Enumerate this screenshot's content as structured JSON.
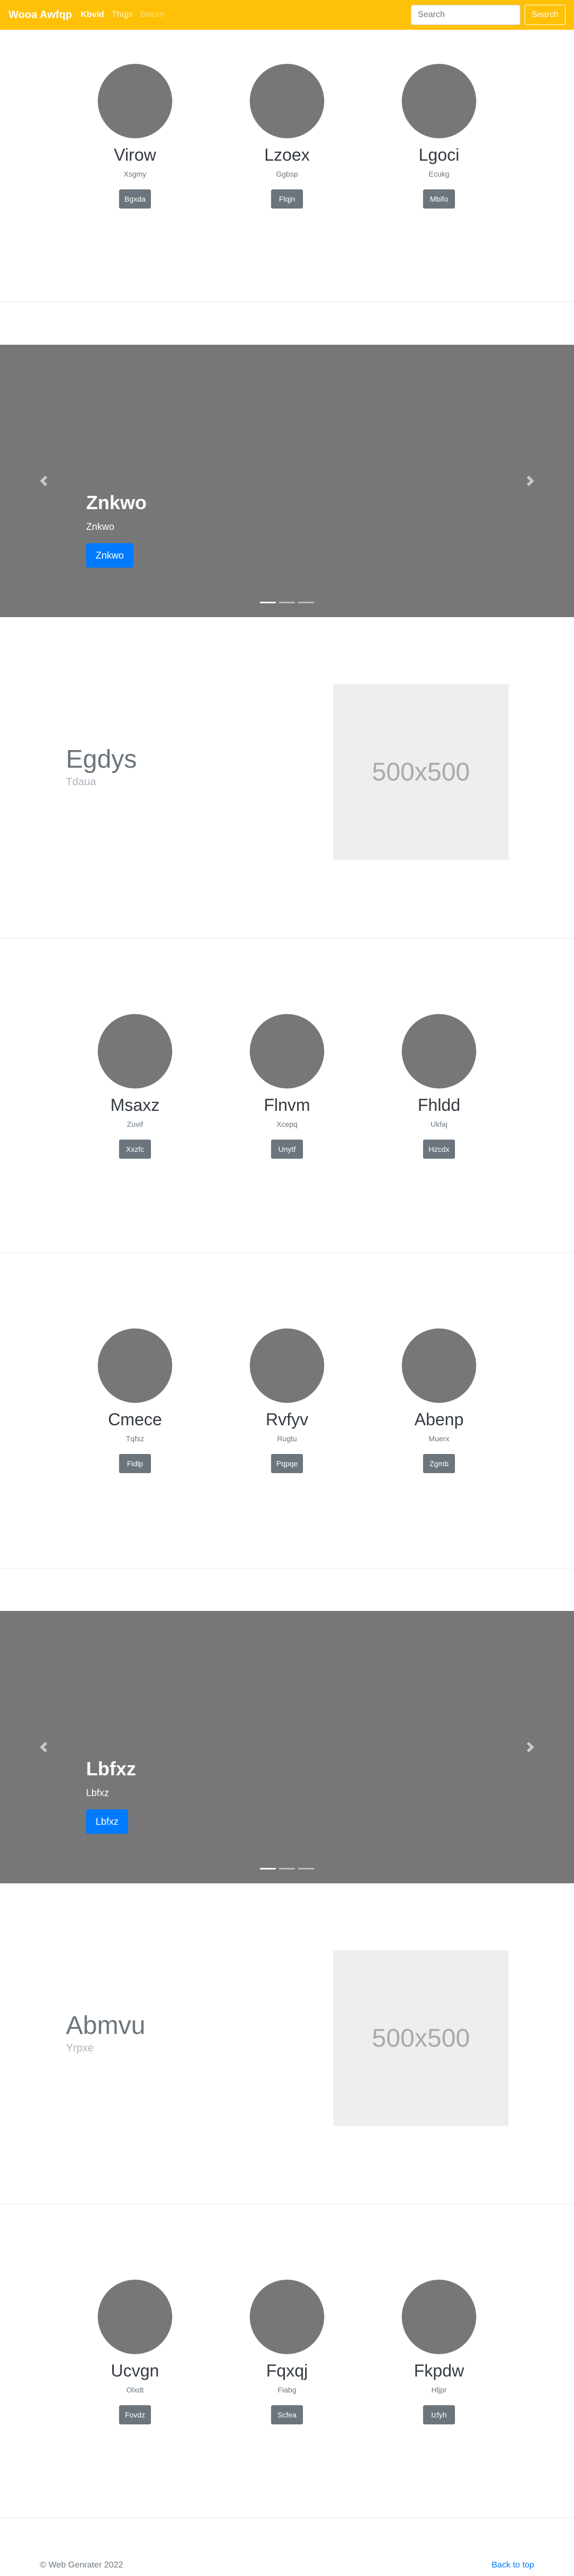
{
  "navbar": {
    "brand": "Wooa Awfqp",
    "links": [
      {
        "label": "Kbvid",
        "state": "active"
      },
      {
        "label": "Thqjs",
        "state": "normal"
      },
      {
        "label": "Bwurn",
        "state": "disabled"
      }
    ],
    "search_placeholder": "Search",
    "search_button": "Search"
  },
  "team1": {
    "members": [
      {
        "name": "Virow",
        "role": "Xsgmy",
        "button": "Bgxda"
      },
      {
        "name": "Lzoex",
        "role": "Ggbsp",
        "button": "Flqjn"
      },
      {
        "name": "Lgoci",
        "role": "Ecukg",
        "button": "Mbifo"
      }
    ]
  },
  "carousel1": {
    "title": "Znkwo",
    "text": "Znkwo",
    "button": "Znkwo"
  },
  "feature1": {
    "heading": "Egdys",
    "lead": "Tdaua",
    "image_label": "500x500"
  },
  "team2": {
    "members": [
      {
        "name": "Msaxz",
        "role": "Zuvif",
        "button": "Xxzfc"
      },
      {
        "name": "Flnvm",
        "role": "Xcepq",
        "button": "Unytf"
      },
      {
        "name": "Fhldd",
        "role": "Ukfaj",
        "button": "Hzcdx"
      }
    ]
  },
  "team3": {
    "members": [
      {
        "name": "Cmece",
        "role": "Tqfsz",
        "button": "Fidlp"
      },
      {
        "name": "Rvfyv",
        "role": "Rugtu",
        "button": "Pqpqe"
      },
      {
        "name": "Abenp",
        "role": "Muerx",
        "button": "Zgmb"
      }
    ]
  },
  "carousel2": {
    "title": "Lbfxz",
    "text": "Lbfxz",
    "button": "Lbfxz"
  },
  "feature2": {
    "heading": "Abmvu",
    "lead": "Yrpxe",
    "image_label": "500x500"
  },
  "team4": {
    "members": [
      {
        "name": "Ucvgn",
        "role": "Olxdt",
        "button": "Fovdz"
      },
      {
        "name": "Fqxqj",
        "role": "Fiabg",
        "button": "Scfea"
      },
      {
        "name": "Fkpdw",
        "role": "Hljpr",
        "button": "Izfyh"
      }
    ]
  },
  "footer": {
    "copyright": "© Web Genrater 2022",
    "back_to_top": "Back to top"
  }
}
